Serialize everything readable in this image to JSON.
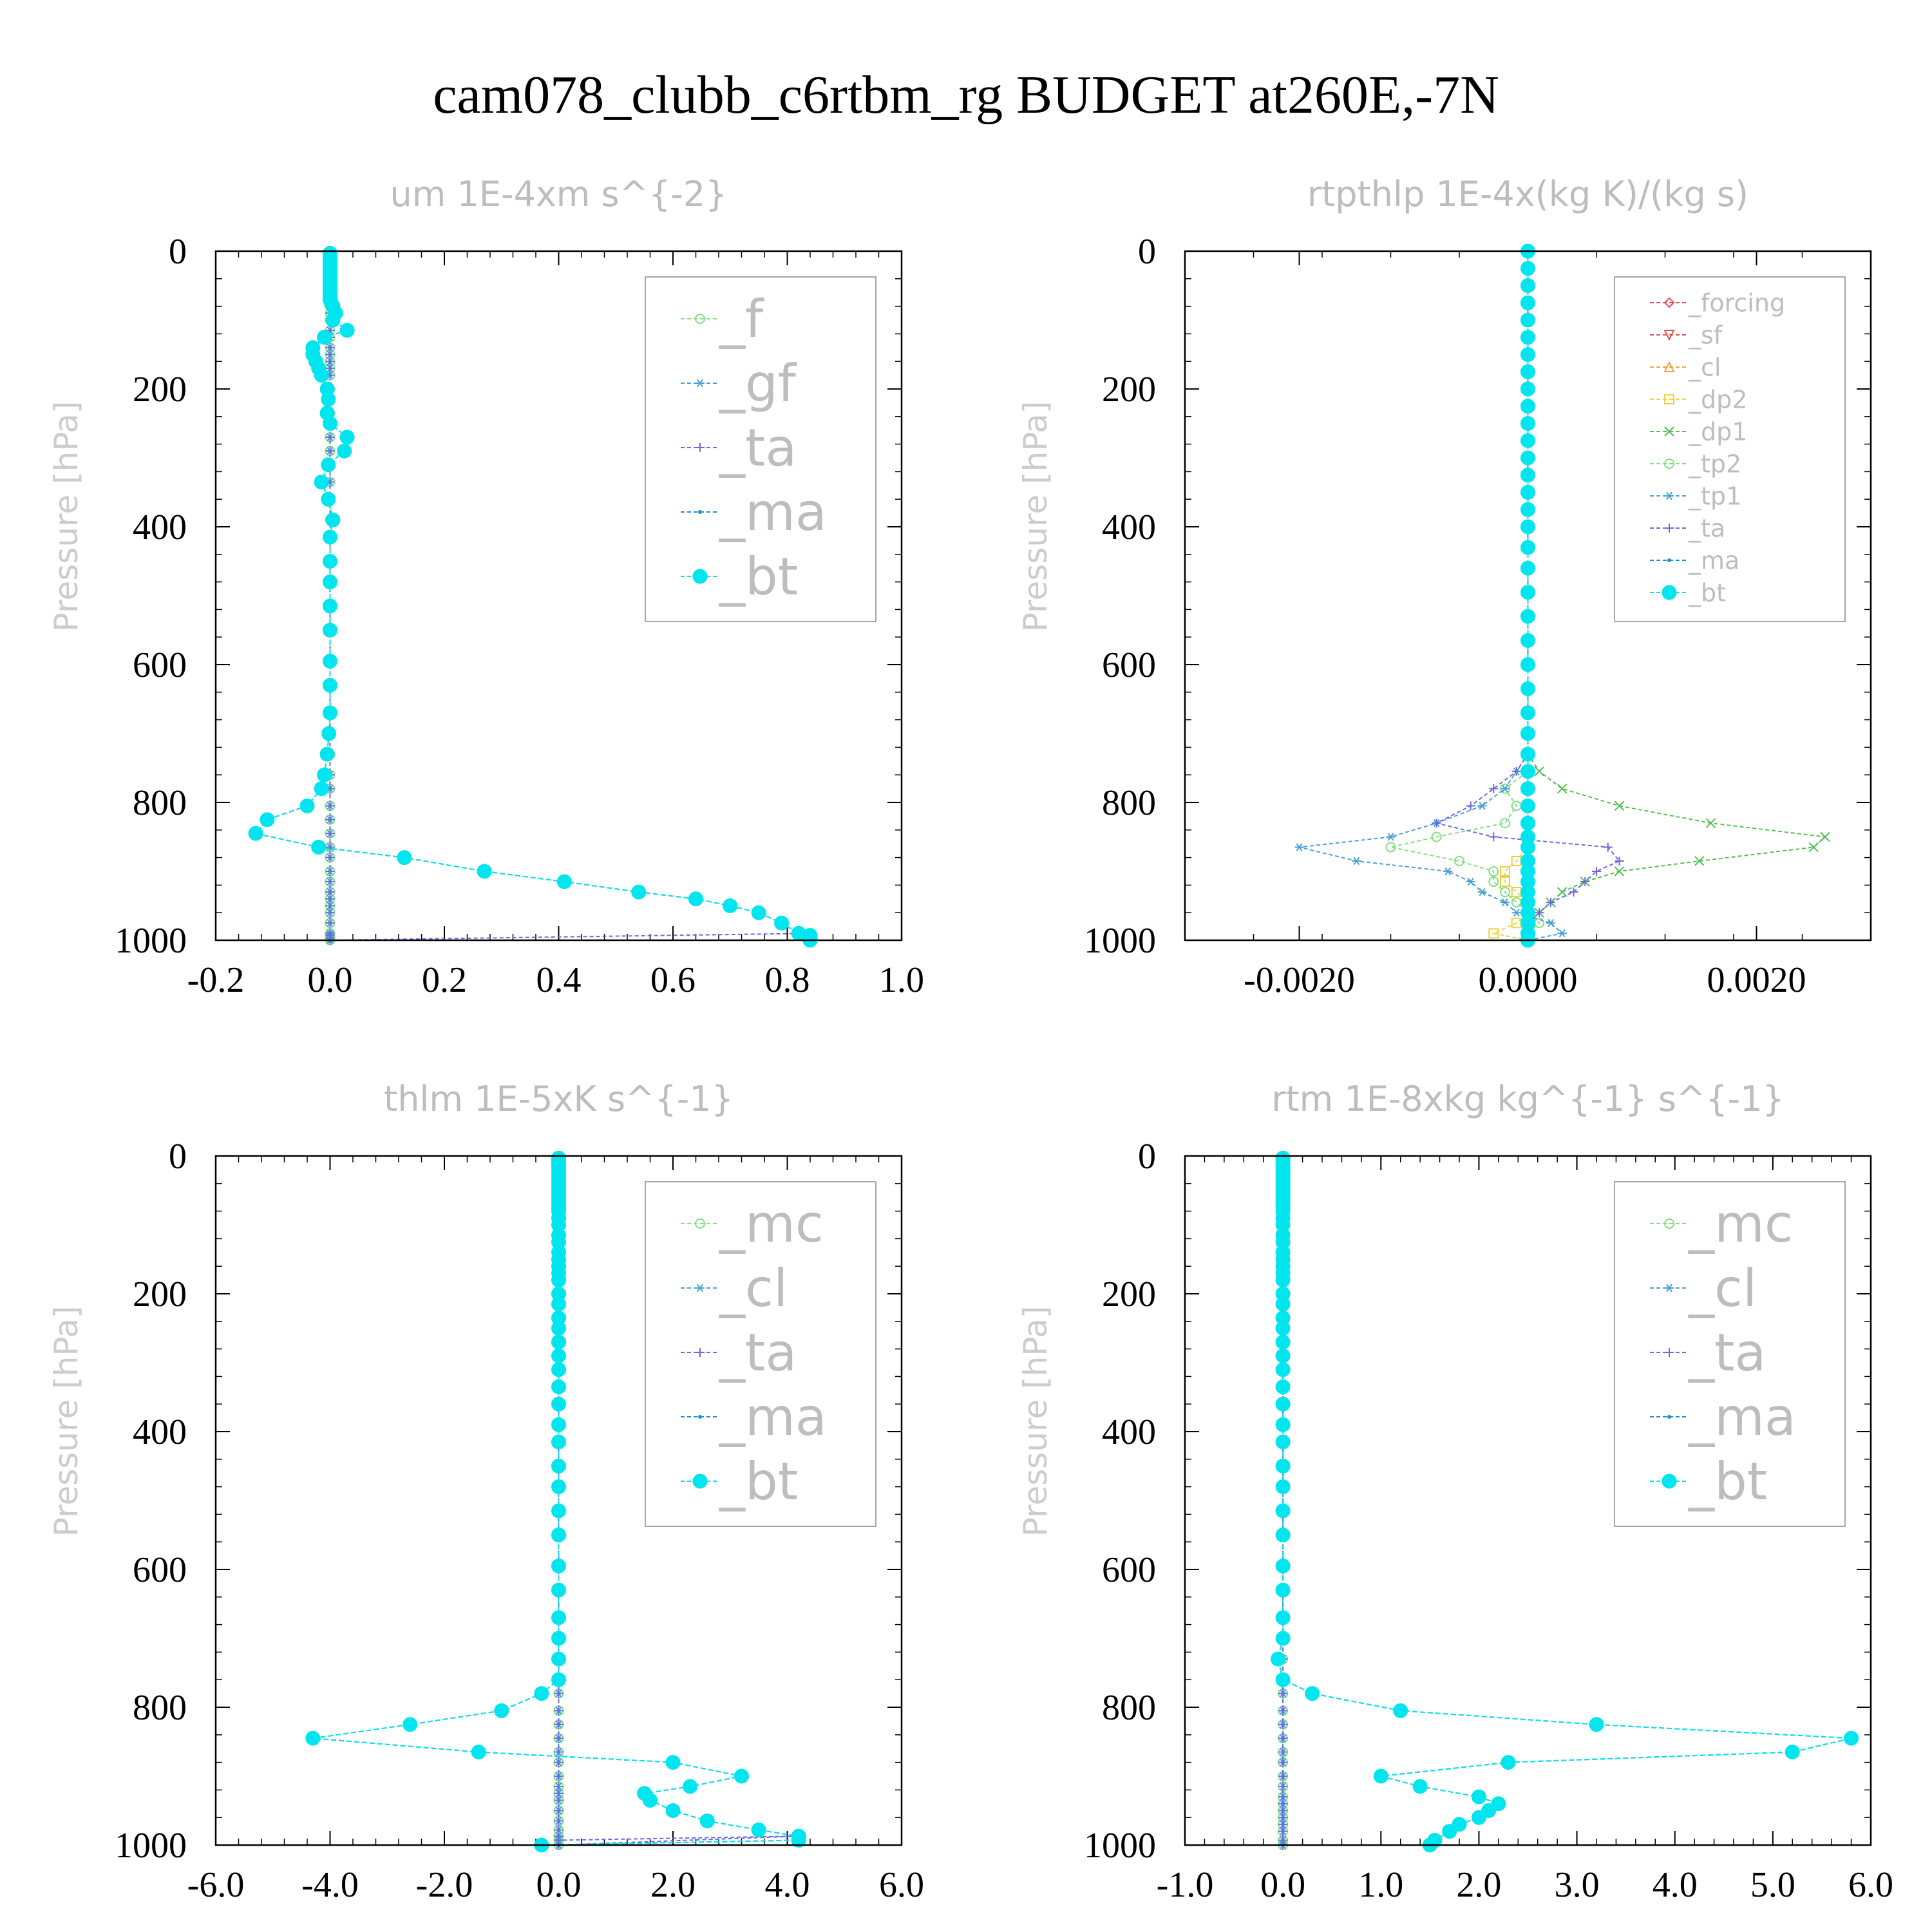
{
  "figure": {
    "title": "cam078_clubb_c6rtbm_rg  BUDGET at260E,-7N"
  },
  "chart_data": [
    {
      "type": "line",
      "title": "um  1E-4xm s^{-2}",
      "ylabel": "Pressure [hPa]",
      "xlabel": "",
      "xlim": [
        -0.2,
        1.0
      ],
      "ylim": [
        0,
        1000
      ],
      "y_inverted": true,
      "xticks": [
        -0.2,
        0.0,
        0.2,
        0.4,
        0.6,
        0.8,
        1.0
      ],
      "xtick_labels": [
        "-0.2",
        "0.0",
        "0.2",
        "0.4",
        "0.6",
        "0.8",
        "1.0"
      ],
      "yticks": [
        0,
        200,
        400,
        600,
        800,
        1000
      ],
      "ytick_labels": [
        "0",
        "200",
        "400",
        "600",
        "800",
        "1000"
      ],
      "legend_position": "top-right",
      "legend_font": 80,
      "pressure": [
        3,
        6,
        10,
        15,
        20,
        25,
        30,
        35,
        40,
        45,
        50,
        55,
        60,
        65,
        70,
        75,
        80,
        90,
        100,
        115,
        125,
        140,
        150,
        160,
        170,
        180,
        200,
        215,
        235,
        250,
        270,
        290,
        310,
        335,
        360,
        390,
        415,
        450,
        480,
        515,
        550,
        595,
        630,
        670,
        700,
        730,
        760,
        780,
        805,
        825,
        845,
        865,
        880,
        900,
        915,
        930,
        940,
        950,
        960,
        975,
        990,
        993,
        997,
        1000
      ],
      "series": [
        {
          "name": "_f",
          "color": "#7fe07f",
          "marker": "circle-open",
          "values": "zero"
        },
        {
          "name": "_gf",
          "color": "#4aa0d8",
          "marker": "asterisk",
          "values": "zero"
        },
        {
          "name": "_ta",
          "color": "#6a6ae0",
          "marker": "plus",
          "values": "zero",
          "tail": [
            [
              0.84,
              990
            ],
            [
              0.84,
              993
            ]
          ]
        },
        {
          "name": "_ma",
          "color": "#1e8fd0",
          "marker": "dot",
          "values": "bt"
        },
        {
          "name": "_bt",
          "color": "#00e5ee",
          "marker": "filled-circle",
          "values": [
            0,
            0,
            0,
            0,
            0,
            0,
            0,
            0,
            0,
            0,
            0,
            0,
            0,
            0,
            0,
            0.002,
            0.005,
            0.01,
            0.005,
            0.03,
            -0.01,
            -0.03,
            -0.03,
            -0.025,
            -0.02,
            -0.015,
            -0.005,
            -0.003,
            -0.005,
            0.0,
            0.03,
            0.025,
            -0.003,
            -0.015,
            -0.003,
            0.005,
            0.0,
            0.0,
            0.0,
            0.0,
            0.0,
            0.0,
            0.0,
            0.0,
            -0.002,
            -0.005,
            -0.01,
            -0.015,
            -0.04,
            -0.11,
            -0.13,
            -0.02,
            0.13,
            0.27,
            0.41,
            0.54,
            0.64,
            0.7,
            0.75,
            0.79,
            0.82,
            0.84,
            0.84,
            0.84
          ]
        }
      ]
    },
    {
      "type": "line",
      "title": "rtpthlp  1E-4x(kg K)/(kg s)",
      "ylabel": "Pressure [hPa]",
      "xlabel": "",
      "xlim": [
        -0.003,
        0.003
      ],
      "ylim": [
        0,
        1000
      ],
      "y_inverted": true,
      "xticks": [
        -0.002,
        0.0,
        0.002
      ],
      "xtick_labels": [
        "-0.0020",
        "0.0000",
        "0.0020"
      ],
      "yticks": [
        0,
        200,
        400,
        600,
        800,
        1000
      ],
      "ytick_labels": [
        "0",
        "200",
        "400",
        "600",
        "800",
        "1000"
      ],
      "legend_position": "top-right",
      "legend_font": 38,
      "pressure": [
        0,
        25,
        50,
        75,
        100,
        125,
        150,
        175,
        200,
        225,
        250,
        275,
        300,
        325,
        350,
        375,
        400,
        430,
        460,
        495,
        530,
        565,
        600,
        635,
        670,
        700,
        730,
        755,
        780,
        805,
        830,
        850,
        865,
        885,
        900,
        915,
        930,
        945,
        960,
        975,
        990,
        1000
      ],
      "series": [
        {
          "name": "_forcing",
          "color": "#e05050",
          "marker": "diamond-open",
          "values": "zero"
        },
        {
          "name": "_sf",
          "color": "#e05050",
          "marker": "triangle-down-open",
          "values": "zero"
        },
        {
          "name": "_cl",
          "color": "#f0a040",
          "marker": "triangle-open",
          "values": "zero"
        },
        {
          "name": "_dp2",
          "color": "#f0d040",
          "marker": "square-open",
          "values": [
            0,
            0,
            0,
            0,
            0,
            0,
            0,
            0,
            0,
            0,
            0,
            0,
            0,
            0,
            0,
            0,
            0,
            0,
            0,
            0,
            0,
            0,
            0,
            0,
            0,
            0,
            0,
            0,
            0,
            0,
            0,
            0,
            0,
            -0.0001,
            -0.0002,
            -0.0002,
            -0.0001,
            0,
            0,
            -0.0001,
            -0.0003,
            0
          ]
        },
        {
          "name": "_dp1",
          "color": "#50c050",
          "marker": "x",
          "values": [
            0,
            0,
            0,
            0,
            0,
            0,
            0,
            0,
            0,
            0,
            0,
            0,
            0,
            0,
            0,
            0,
            0,
            0,
            0,
            0,
            0,
            0,
            0,
            0,
            0,
            0,
            0,
            0.0001,
            0.0003,
            0.0008,
            0.0016,
            0.0026,
            0.0025,
            0.0015,
            0.0008,
            0.0005,
            0.0003,
            0.0002,
            0.0001,
            0,
            0,
            0
          ]
        },
        {
          "name": "_tp2",
          "color": "#80e080",
          "marker": "circle-open",
          "values": [
            0,
            0,
            0,
            0,
            0,
            0,
            0,
            0,
            0,
            0,
            0,
            0,
            0,
            0,
            0,
            0,
            0,
            0,
            0,
            0,
            0,
            0,
            0,
            0,
            0,
            0,
            0,
            0,
            -0.0002,
            -0.0001,
            -0.0002,
            -0.0008,
            -0.0012,
            -0.0006,
            -0.0003,
            -0.0003,
            -0.0002,
            -0.0001,
            0,
            0.0001,
            0,
            0
          ]
        },
        {
          "name": "_tp1",
          "color": "#4aa0d8",
          "marker": "asterisk",
          "values": [
            0,
            0,
            0,
            0,
            0,
            0,
            0,
            0,
            0,
            0,
            0,
            0,
            0,
            0,
            0,
            0,
            0,
            0,
            0,
            0,
            0,
            0,
            0,
            0,
            0,
            0,
            0,
            -0.0001,
            -0.0002,
            -0.0004,
            -0.0008,
            -0.0012,
            -0.002,
            -0.0015,
            -0.0007,
            -0.0005,
            -0.0004,
            -0.0002,
            -0.0001,
            0.0002,
            0.0003,
            0
          ]
        },
        {
          "name": "_ta",
          "color": "#6a6ae0",
          "marker": "plus",
          "values": [
            0,
            0,
            0,
            0,
            0,
            0,
            0,
            0,
            0,
            0,
            0,
            0,
            0,
            0,
            0,
            0,
            0,
            0,
            0,
            0,
            0,
            0,
            0,
            0,
            0,
            0,
            0,
            -0.0001,
            -0.0003,
            -0.0005,
            -0.0008,
            -0.0003,
            0.0007,
            0.0008,
            0.0006,
            0.0005,
            0.0004,
            0.0002,
            0.0001,
            0,
            0,
            0
          ]
        },
        {
          "name": "_ma",
          "color": "#1e8fd0",
          "marker": "dot",
          "values": "zero"
        },
        {
          "name": "_bt",
          "color": "#00e5ee",
          "marker": "filled-circle",
          "values": "zero"
        }
      ]
    },
    {
      "type": "line",
      "title": "thlm  1E-5xK s^{-1}",
      "ylabel": "Pressure [hPa]",
      "xlabel": "",
      "xlim": [
        -6.0,
        6.0
      ],
      "ylim": [
        0,
        1000
      ],
      "y_inverted": true,
      "xticks": [
        -6,
        -4,
        -2,
        0,
        2,
        4,
        6
      ],
      "xtick_labels": [
        "-6.0",
        "-4.0",
        "-2.0",
        "0.0",
        "2.0",
        "4.0",
        "6.0"
      ],
      "yticks": [
        0,
        200,
        400,
        600,
        800,
        1000
      ],
      "ytick_labels": [
        "0",
        "200",
        "400",
        "600",
        "800",
        "1000"
      ],
      "legend_position": "top-right",
      "legend_font": 80,
      "pressure": [
        3,
        6,
        10,
        15,
        20,
        25,
        30,
        35,
        40,
        45,
        50,
        55,
        60,
        65,
        70,
        75,
        80,
        90,
        100,
        115,
        125,
        140,
        150,
        160,
        170,
        180,
        200,
        215,
        235,
        250,
        270,
        290,
        310,
        335,
        360,
        390,
        415,
        450,
        480,
        515,
        550,
        595,
        630,
        670,
        700,
        730,
        760,
        780,
        805,
        825,
        845,
        865,
        880,
        900,
        915,
        925,
        935,
        950,
        965,
        978,
        987,
        993,
        1000
      ],
      "series": [
        {
          "name": "_mc",
          "color": "#7fe07f",
          "marker": "circle-open",
          "values": "zero"
        },
        {
          "name": "_cl",
          "color": "#4aa0d8",
          "marker": "asterisk",
          "values": "zero"
        },
        {
          "name": "_ta",
          "color": "#6a6ae0",
          "marker": "plus",
          "values": "zero",
          "tail": [
            [
              4.2,
              987
            ],
            [
              0.0,
              993
            ]
          ]
        },
        {
          "name": "_ma",
          "color": "#1e8fd0",
          "marker": "dot",
          "values": "bt"
        },
        {
          "name": "_bt",
          "color": "#00e5ee",
          "marker": "filled-circle",
          "values": [
            0,
            0,
            0,
            0,
            0,
            0,
            0,
            0,
            0,
            0,
            0,
            0,
            0,
            0,
            0,
            0,
            0,
            0,
            0,
            0,
            0,
            0,
            0,
            0,
            0,
            0,
            0,
            0,
            0,
            0,
            0,
            0,
            0,
            0,
            0,
            0,
            0,
            0,
            0,
            0,
            0,
            0,
            0,
            0,
            0,
            0,
            0,
            -0.3,
            -1.0,
            -2.6,
            -4.3,
            -1.4,
            2.0,
            3.2,
            2.3,
            1.5,
            1.6,
            2.0,
            2.6,
            3.5,
            4.2,
            4.2,
            -0.3
          ]
        }
      ]
    },
    {
      "type": "line",
      "title": "rtm  1E-8xkg kg^{-1} s^{-1}",
      "ylabel": "Pressure [hPa]",
      "xlabel": "",
      "xlim": [
        -1.0,
        6.0
      ],
      "ylim": [
        0,
        1000
      ],
      "y_inverted": true,
      "xticks": [
        -1,
        0,
        1,
        2,
        3,
        4,
        5,
        6
      ],
      "xtick_labels": [
        "-1.0",
        "0.0",
        "1.0",
        "2.0",
        "3.0",
        "4.0",
        "5.0",
        "6.0"
      ],
      "yticks": [
        0,
        200,
        400,
        600,
        800,
        1000
      ],
      "ytick_labels": [
        "0",
        "200",
        "400",
        "600",
        "800",
        "1000"
      ],
      "legend_position": "top-right",
      "legend_font": 80,
      "pressure": [
        3,
        6,
        10,
        15,
        20,
        25,
        30,
        35,
        40,
        45,
        50,
        55,
        60,
        65,
        70,
        75,
        80,
        90,
        100,
        115,
        125,
        140,
        150,
        160,
        170,
        180,
        200,
        215,
        235,
        250,
        270,
        290,
        310,
        335,
        360,
        390,
        415,
        450,
        480,
        515,
        550,
        595,
        630,
        670,
        700,
        730,
        760,
        780,
        805,
        825,
        845,
        865,
        880,
        900,
        915,
        930,
        940,
        950,
        960,
        970,
        980,
        993,
        1000
      ],
      "series": [
        {
          "name": "_mc",
          "color": "#7fe07f",
          "marker": "circle-open",
          "values": "zero"
        },
        {
          "name": "_cl",
          "color": "#4aa0d8",
          "marker": "asterisk",
          "values": "zero"
        },
        {
          "name": "_ta",
          "color": "#6a6ae0",
          "marker": "plus",
          "values": "zero",
          "tail": [
            [
              0.0,
              1000
            ],
            [
              1.5,
              1000
            ]
          ]
        },
        {
          "name": "_ma",
          "color": "#1e8fd0",
          "marker": "dot",
          "values": "bt"
        },
        {
          "name": "_bt",
          "color": "#00e5ee",
          "marker": "filled-circle",
          "values": [
            0,
            0,
            0,
            0,
            0,
            0,
            0,
            0,
            0,
            0,
            0,
            0,
            0,
            0,
            0,
            0,
            0,
            0,
            0,
            0,
            0,
            0,
            0,
            0,
            0,
            0,
            0,
            0,
            0,
            0,
            0,
            0,
            0,
            0,
            0,
            0,
            0,
            0,
            0,
            0,
            0,
            0,
            0,
            0,
            0,
            -0.05,
            0,
            0.3,
            1.2,
            3.2,
            5.8,
            5.2,
            2.3,
            1.0,
            1.4,
            2.0,
            2.2,
            2.1,
            2.0,
            1.8,
            1.7,
            1.55,
            1.5
          ]
        }
      ]
    }
  ]
}
